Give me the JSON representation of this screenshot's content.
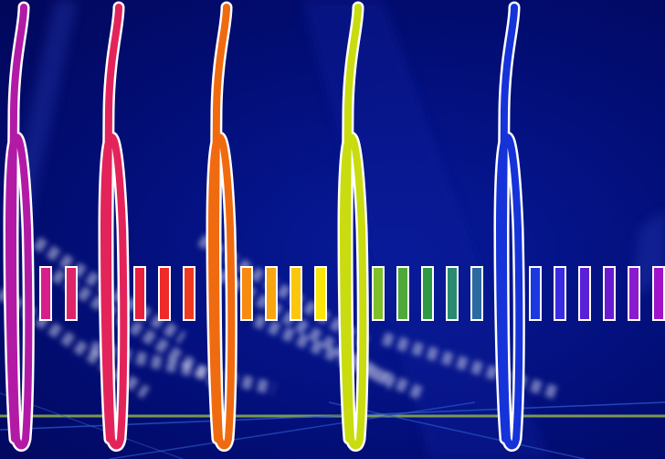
{
  "slide": {
    "background_color": "#03107e",
    "accent_line_color": "#8fb04a",
    "light_streak_color": "#c9cce8"
  },
  "hooks": [
    {
      "icon": "hook-glyph-icon",
      "color": "#b21aa6"
    },
    {
      "icon": "hook-glyph-icon",
      "color": "#e3245a"
    },
    {
      "icon": "hook-glyph-icon",
      "color": "#f06a10"
    },
    {
      "icon": "hook-glyph-icon",
      "color": "#c8dc10"
    },
    {
      "icon": "hook-glyph-icon",
      "color": "#1533d8"
    }
  ],
  "bar_groups": [
    {
      "colors": [
        "#d81e8a",
        "#e0246a"
      ]
    },
    {
      "colors": [
        "#e8203c",
        "#ee2a2a",
        "#f03a20"
      ]
    },
    {
      "colors": [
        "#f78a10",
        "#f9a510",
        "#fbc60e",
        "#fbe40a"
      ]
    },
    {
      "colors": [
        "#7fbf2a",
        "#4ea83a",
        "#2e9a44",
        "#2a8a70",
        "#2a6aa0"
      ]
    },
    {
      "colors": [
        "#1a3ae0",
        "#3a2ae0",
        "#5a20d8",
        "#6a1ad0",
        "#8a1acc",
        "#a012c8"
      ]
    }
  ]
}
